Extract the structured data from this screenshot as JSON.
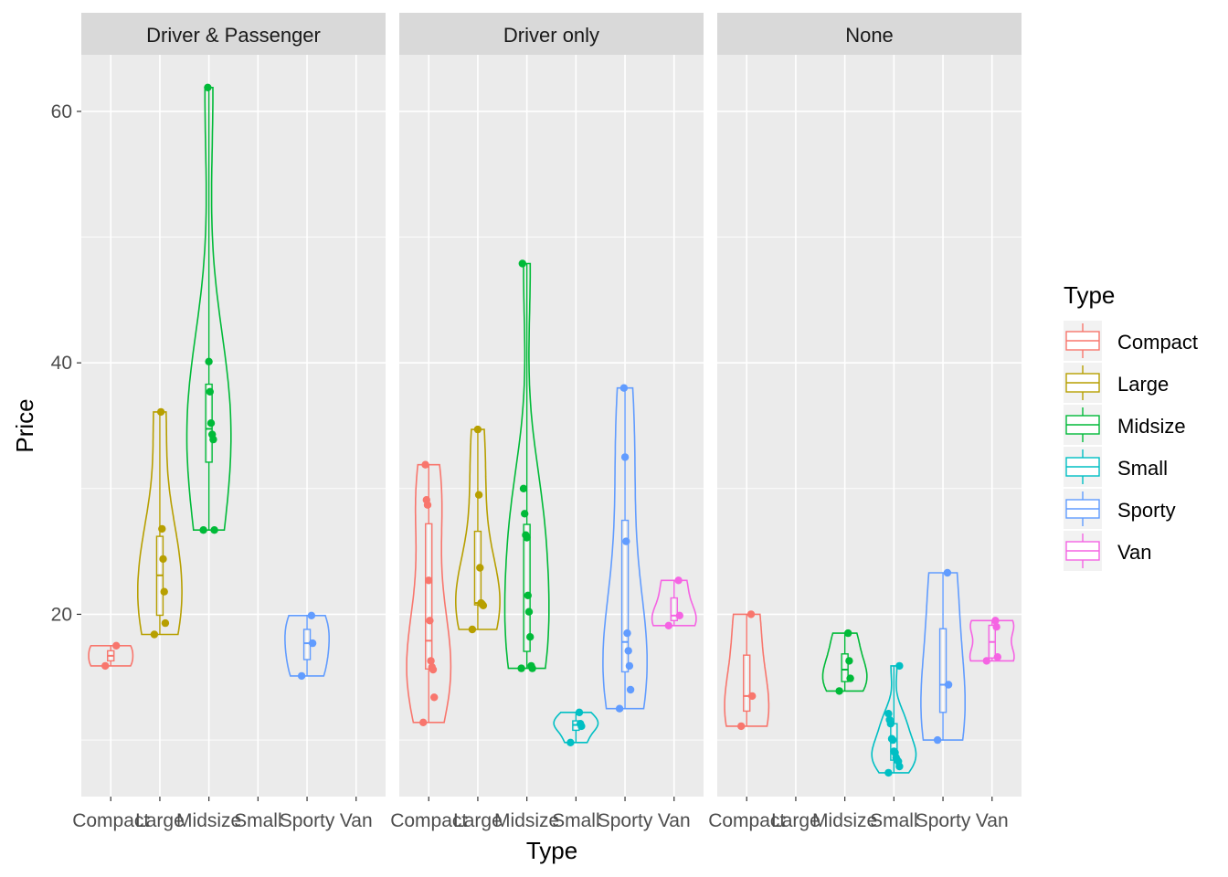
{
  "chart_data": {
    "type": "violin",
    "xlabel": "Type",
    "ylabel": "Price",
    "ylim": [
      5.5,
      64.5
    ],
    "y_ticks": [
      20,
      40,
      60
    ],
    "categories": [
      "Compact",
      "Large",
      "Midsize",
      "Small",
      "Sporty",
      "Van"
    ],
    "legend": {
      "title": "Type",
      "placement": "right",
      "entries": [
        "Compact",
        "Large",
        "Midsize",
        "Small",
        "Sporty",
        "Van"
      ]
    },
    "colors": {
      "Compact": "#F8766D",
      "Large": "#B79F00",
      "Midsize": "#00BA38",
      "Small": "#00BFC4",
      "Sporty": "#619CFF",
      "Van": "#F564E3"
    },
    "facets": [
      {
        "label": "Driver & Passenger",
        "groups": [
          {
            "category": "Compact",
            "values": [
              15.9,
              17.5
            ]
          },
          {
            "category": "Large",
            "values": [
              18.4,
              19.3,
              21.8,
              24.4,
              26.8,
              36.1
            ]
          },
          {
            "category": "Midsize",
            "values": [
              26.7,
              26.7,
              33.9,
              34.3,
              35.2,
              37.7,
              40.1,
              61.9
            ]
          },
          {
            "category": "Sporty",
            "values": [
              15.1,
              17.7,
              19.9
            ]
          }
        ]
      },
      {
        "label": "Driver only",
        "groups": [
          {
            "category": "Compact",
            "values": [
              11.4,
              13.4,
              15.6,
              15.8,
              16.3,
              19.5,
              22.7,
              28.7,
              29.1,
              31.9
            ]
          },
          {
            "category": "Large",
            "values": [
              18.8,
              20.7,
              20.8,
              20.9,
              23.7,
              29.5,
              34.7
            ]
          },
          {
            "category": "Midsize",
            "values": [
              15.7,
              15.7,
              15.9,
              18.2,
              20.2,
              21.5,
              26.1,
              26.3,
              28.0,
              30.0,
              47.9
            ]
          },
          {
            "category": "Small",
            "values": [
              9.8,
              11.1,
              11.3,
              12.2
            ]
          },
          {
            "category": "Sporty",
            "values": [
              12.5,
              14.0,
              15.9,
              17.1,
              18.5,
              25.8,
              32.5,
              38.0
            ]
          },
          {
            "category": "Van",
            "values": [
              19.1,
              19.9,
              22.7
            ]
          }
        ]
      },
      {
        "label": "None",
        "groups": [
          {
            "category": "Compact",
            "values": [
              11.1,
              13.5,
              20.0
            ]
          },
          {
            "category": "Midsize",
            "values": [
              13.9,
              14.9,
              16.3,
              18.5
            ]
          },
          {
            "category": "Small",
            "values": [
              7.4,
              7.9,
              8.3,
              8.4,
              8.6,
              9.0,
              9.1,
              10.0,
              10.1,
              11.3,
              11.6,
              12.1,
              15.9
            ]
          },
          {
            "category": "Sporty",
            "values": [
              10.0,
              14.4,
              23.3
            ]
          },
          {
            "category": "Van",
            "values": [
              16.3,
              16.6,
              19.0,
              19.5
            ]
          }
        ]
      }
    ]
  }
}
